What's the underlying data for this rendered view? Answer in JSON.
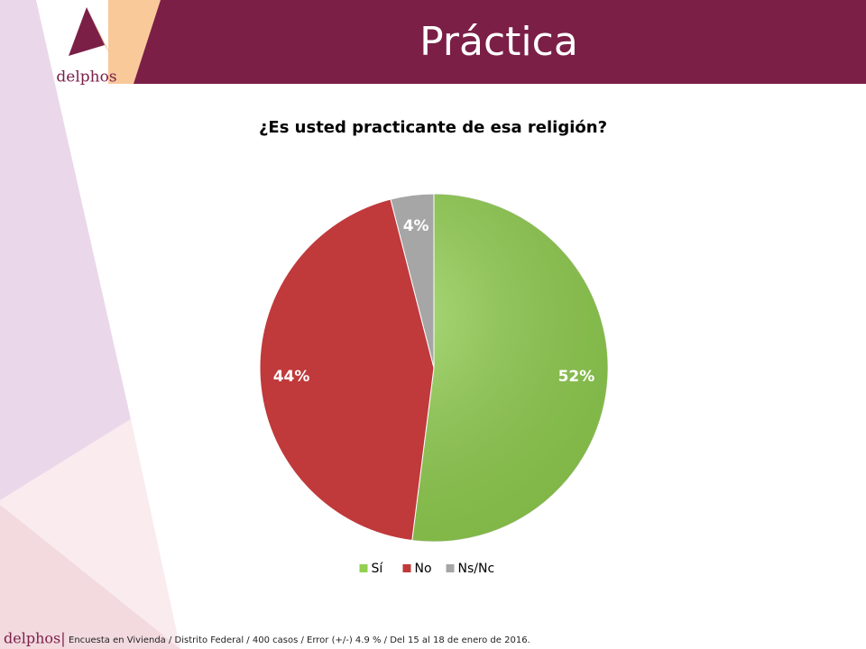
{
  "header": {
    "title": "Práctica",
    "logo": "delphos"
  },
  "chart_data": {
    "type": "pie",
    "title": "¿Es usted practicante de esa religión?",
    "categories": [
      "Sí",
      "No",
      "Ns/Nc"
    ],
    "values": [
      52,
      44,
      4
    ],
    "value_labels": [
      "52%",
      "44%",
      "4%"
    ],
    "colors": [
      "#92d050",
      "#c0393b",
      "#a6a6a6"
    ],
    "legend": "bottom"
  },
  "footer": {
    "brand": "delphos|",
    "note": "Encuesta en Vivienda / Distrito Federal / 400 casos / Error (+/-) 4.9 % / Del 15 al 18 de enero de 2016."
  }
}
